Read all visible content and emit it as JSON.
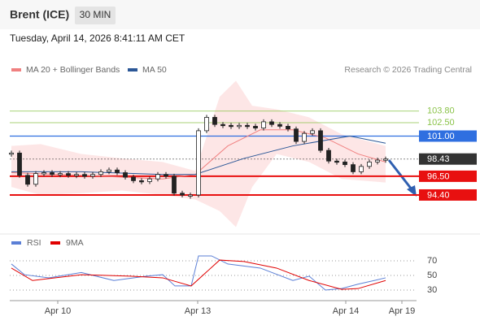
{
  "chart_data": {
    "type": "candlestick",
    "title": "Brent (ICE)",
    "timeframe": "30 MIN",
    "subtitle": "Tuesday, April 14, 2026 8:41:11 AM CET",
    "credit": "Research © 2026 Trading Central",
    "values": [
      99.1,
      96.6,
      95.6,
      96.8,
      96.9,
      96.7,
      96.8,
      96.6,
      96.7,
      96.5,
      96.7,
      97.0,
      97.2,
      96.9,
      96.4,
      96.0,
      95.9,
      96.2,
      96.7,
      96.5,
      94.6,
      94.4,
      94.4,
      101.6,
      103.1,
      102.3,
      102.2,
      102.1,
      102.2,
      102.1,
      101.9,
      102.6,
      102.3,
      102.1,
      101.8,
      100.4,
      101.3,
      101.6,
      99.4,
      98.2,
      98.1,
      97.8,
      97.0,
      97.6,
      98.1,
      98.3,
      98.43
    ],
    "xlim": [
      -0.2,
      49.6
    ],
    "xticks": [
      {
        "value": 5.7,
        "label": "Apr 10"
      },
      {
        "value": 22.9,
        "label": "Apr 13"
      },
      {
        "value": 41.1,
        "label": "Apr 14"
      },
      {
        "value": 48,
        "label": "Apr 19"
      }
    ],
    "ylim": [
      90.3,
      107.6
    ],
    "levels": [
      {
        "value": 103.8,
        "label": "103.80",
        "color": "#8bc34a",
        "style": "text"
      },
      {
        "value": 102.5,
        "label": "102.50",
        "color": "#8bc34a",
        "style": "text"
      },
      {
        "value": 101.0,
        "label": "101.00",
        "color": "#2f6fe0",
        "style": "box"
      },
      {
        "value": 98.43,
        "label": "98.43",
        "color": "#333333",
        "style": "box"
      },
      {
        "value": 96.5,
        "label": "96.50",
        "color": "#e81010",
        "style": "box"
      },
      {
        "value": 94.4,
        "label": "94.40",
        "color": "#e81010",
        "style": "box"
      }
    ],
    "series": [
      {
        "name": "MA 20 + Bollinger Bands",
        "color": "#f08080",
        "x": [
          0,
          8.6,
          18.6,
          22.6,
          26.6,
          30.6,
          34.6,
          38.6,
          42.6,
          46
        ],
        "values": [
          96.9,
          96.6,
          96.2,
          96.7,
          99.9,
          101.7,
          101.7,
          100.8,
          99.0,
          98.1
        ]
      },
      {
        "name": "MA 50",
        "color": "#2b5797",
        "x": [
          0,
          8.6,
          18.6,
          22.6,
          28.6,
          34.6,
          41.6,
          46
        ],
        "values": [
          97.0,
          97.0,
          96.7,
          96.7,
          98.5,
          99.9,
          101.0,
          100.2
        ]
      }
    ],
    "bollinger": {
      "x": [
        0,
        3.6,
        8.6,
        13.6,
        18.6,
        22.6,
        25.6,
        27.6,
        29.6,
        32.6,
        36.6,
        40.6,
        46
      ],
      "upper": [
        99.9,
        100.1,
        99.0,
        98.5,
        98.1,
        97.1,
        105.4,
        107.2,
        104.4,
        104.0,
        103.1,
        101.2,
        99.9
      ],
      "lower": [
        95.3,
        94.4,
        94.6,
        94.9,
        94.4,
        93.9,
        92.6,
        90.8,
        95.3,
        99.0,
        98.1,
        96.2,
        95.8
      ]
    },
    "rsi": {
      "ylim": [
        13.3,
        93.3
      ],
      "yticks": [
        30,
        50,
        70
      ],
      "series": [
        {
          "name": "RSI",
          "color": "#5b7fd6",
          "x": [
            0,
            1.6,
            4.6,
            8.6,
            12.6,
            16.6,
            18.6,
            20.1,
            22.1,
            23,
            24.6,
            26.6,
            30.6,
            34.6,
            36.6,
            38.6,
            40.6,
            42.6,
            44.6,
            46
          ],
          "values": [
            65.6,
            51,
            46.7,
            54,
            43,
            49,
            51,
            35.6,
            35.6,
            76.7,
            76.7,
            65.6,
            60,
            43,
            49,
            30,
            32,
            38,
            43,
            46.7
          ]
        },
        {
          "name": "9MA",
          "color": "#e00000",
          "x": [
            0,
            2.6,
            8.6,
            14.6,
            18.6,
            22.1,
            25.6,
            28.6,
            32.6,
            36.6,
            40.6,
            42.6,
            46
          ],
          "values": [
            60,
            43,
            51,
            49,
            46.7,
            35.6,
            71,
            69,
            60,
            43,
            31,
            32,
            43
          ]
        }
      ]
    }
  }
}
